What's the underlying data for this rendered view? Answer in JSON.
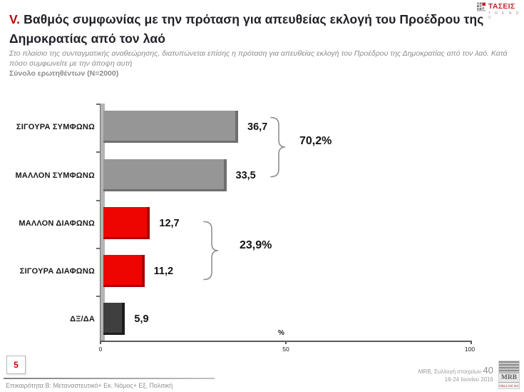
{
  "header": {
    "logo": {
      "title": "ΤΑΣΕΙΣ",
      "subtitle": "T R E N D S"
    },
    "title_prefix": "V.",
    "title": "Βαθμός συμφωνίας με την πρόταση για απευθείας εκλογή του Προέδρου της Δημοκρατίας από τον λαό",
    "subtitle": "Στο πλαίσιο της συνταγματικής αναθεώρησης, διατυπώνεται επίσης η πρόταση για απευθείας εκλογή του Προέδρου της Δημοκρατίας από τον λαό. Κατά πόσο συμφωνείτε με την άποψη αυτή",
    "sample_note": "Σύνολο ερωτηθέντων (N=2000)"
  },
  "chart_data": {
    "type": "bar",
    "orientation": "horizontal",
    "categories": [
      "ΣΙΓΟΥΡΑ ΣΥΜΦΩΝΩ",
      "ΜΑΛΛΟΝ ΣΥΜΦΩΝΩ",
      "ΜΑΛΛΟΝ ΔΙΑΦΩΝΩ",
      "ΣΙΓΟΥΡΑ ΔΙΑΦΩΝΩ",
      "ΔΞ/ΔΑ"
    ],
    "values": [
      36.7,
      33.5,
      12.7,
      11.2,
      5.9
    ],
    "value_labels": [
      "36,7",
      "33,5",
      "12,7",
      "11,2",
      "5,9"
    ],
    "bar_colors": [
      "#969696",
      "#969696",
      "#ee0400",
      "#ee0400",
      "#3f3f3f"
    ],
    "bar_edge_colors": [
      "#6e6e6e",
      "#6e6e6e",
      "#a50300",
      "#a50300",
      "#1d1d1d"
    ],
    "xlabel": "%",
    "xlim": [
      0,
      100
    ],
    "x_ticks": [
      "0",
      "50",
      "100"
    ],
    "grid": false,
    "groups": [
      {
        "label": "70,2%",
        "members": [
          "ΣΙΓΟΥΡΑ ΣΥΜΦΩΝΩ",
          "ΜΑΛΛΟΝ ΣΥΜΦΩΝΩ"
        ],
        "sum": 70.2
      },
      {
        "label": "23,9%",
        "members": [
          "ΜΑΛΛΟΝ ΔΙΑΦΩΝΩ",
          "ΣΙΓΟΥΡΑ ΔΙΑΦΩΝΩ"
        ],
        "sum": 23.9
      }
    ]
  },
  "footer": {
    "page_number": "5",
    "topic_note": "Επικαιρότητα Β: Μεταναστευτικό+ Εκ. Νόμος+ Εξ. Πολιτική",
    "source_line1": "MRB, Συλλογή στοιχείων",
    "source_wave": "40",
    "source_line2": "16-24 Ιουνίου 2016",
    "mrb_logo_text": "MRB",
    "mrb_logo_sub": "HELLAS SA"
  }
}
